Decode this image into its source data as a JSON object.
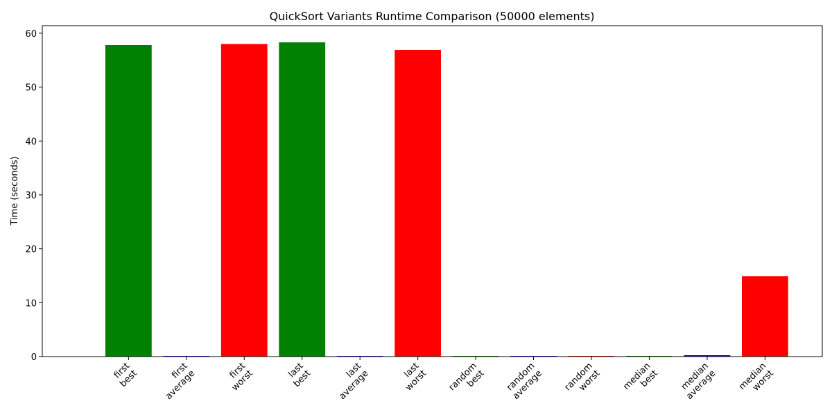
{
  "chart_data": {
    "type": "bar",
    "title": "QuickSort Variants Runtime Comparison (50000 elements)",
    "xlabel": "",
    "ylabel": "Time (seconds)",
    "ylim": [
      0,
      61.4
    ],
    "yticks": [
      0,
      10,
      20,
      30,
      40,
      50,
      60
    ],
    "grid": false,
    "legend": "none",
    "categories": [
      [
        "first",
        "best"
      ],
      [
        "first",
        "average"
      ],
      [
        "first",
        "worst"
      ],
      [
        "last",
        "best"
      ],
      [
        "last",
        "average"
      ],
      [
        "last",
        "worst"
      ],
      [
        "random",
        "best"
      ],
      [
        "random",
        "average"
      ],
      [
        "random",
        "worst"
      ],
      [
        "median",
        "best"
      ],
      [
        "median",
        "average"
      ],
      [
        "median",
        "worst"
      ]
    ],
    "values": [
      57.8,
      0.12,
      58.0,
      58.3,
      0.12,
      56.9,
      0.1,
      0.12,
      0.1,
      0.1,
      0.25,
      14.9
    ],
    "bar_colors": [
      "#008000",
      "#0000ff",
      "#ff0000",
      "#008000",
      "#0000ff",
      "#ff0000",
      "#008000",
      "#0000ff",
      "#ff0000",
      "#008000",
      "#0000ff",
      "#ff0000"
    ]
  }
}
